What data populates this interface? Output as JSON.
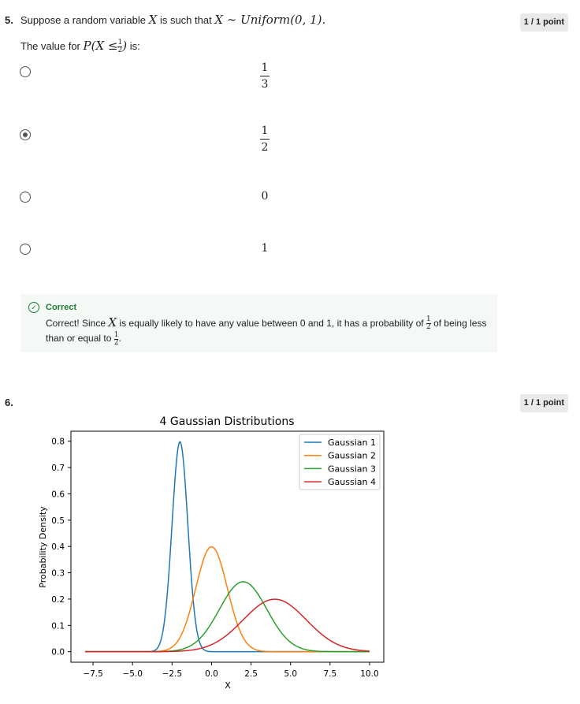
{
  "q5": {
    "number": "5.",
    "text_prefix": "Suppose a random variable",
    "var_x": "X",
    "text_mid": "is such that",
    "dist_expr": "X ∼ Uniform(0, 1).",
    "points": "1 / 1 point",
    "prompt_prefix": "The value for",
    "prob_lhs": "P(X ≤",
    "prob_rhs": ")",
    "prompt_suffix": "is:",
    "half_num": "1",
    "half_den": "2",
    "options": [
      {
        "num": "1",
        "den": "3",
        "selected": false
      },
      {
        "num": "1",
        "den": "2",
        "selected": true
      },
      {
        "text": "0",
        "selected": false
      },
      {
        "text": "1",
        "selected": false
      }
    ],
    "feedback": {
      "title": "Correct",
      "text1": "Correct! Since",
      "var": "X",
      "text2": "is equally likely to have any value between 0 and 1, it has a probability of",
      "text3": "of being less than or equal to",
      "text4": "."
    }
  },
  "q6": {
    "number": "6.",
    "points": "1 / 1 point"
  },
  "chart_data": {
    "type": "line",
    "title": "4 Gaussian Distributions",
    "xlabel": "X",
    "ylabel": "Probability Density",
    "xlim": [
      -8,
      10
    ],
    "ylim": [
      0,
      0.8
    ],
    "x_ticks": [
      -7.5,
      -5.0,
      -2.5,
      0.0,
      2.5,
      5.0,
      7.5,
      10.0
    ],
    "y_ticks": [
      0.0,
      0.1,
      0.2,
      0.3,
      0.4,
      0.5,
      0.6,
      0.7,
      0.8
    ],
    "legend_position": "top-right",
    "grid": false,
    "series": [
      {
        "name": "Gaussian 1",
        "color": "#1f77b4",
        "mean": -2,
        "std": 0.5
      },
      {
        "name": "Gaussian 2",
        "color": "#ff7f0e",
        "mean": 0,
        "std": 1
      },
      {
        "name": "Gaussian 3",
        "color": "#2ca02c",
        "mean": 2,
        "std": 1.5
      },
      {
        "name": "Gaussian 4",
        "color": "#d62728",
        "mean": 4,
        "std": 2
      }
    ]
  }
}
